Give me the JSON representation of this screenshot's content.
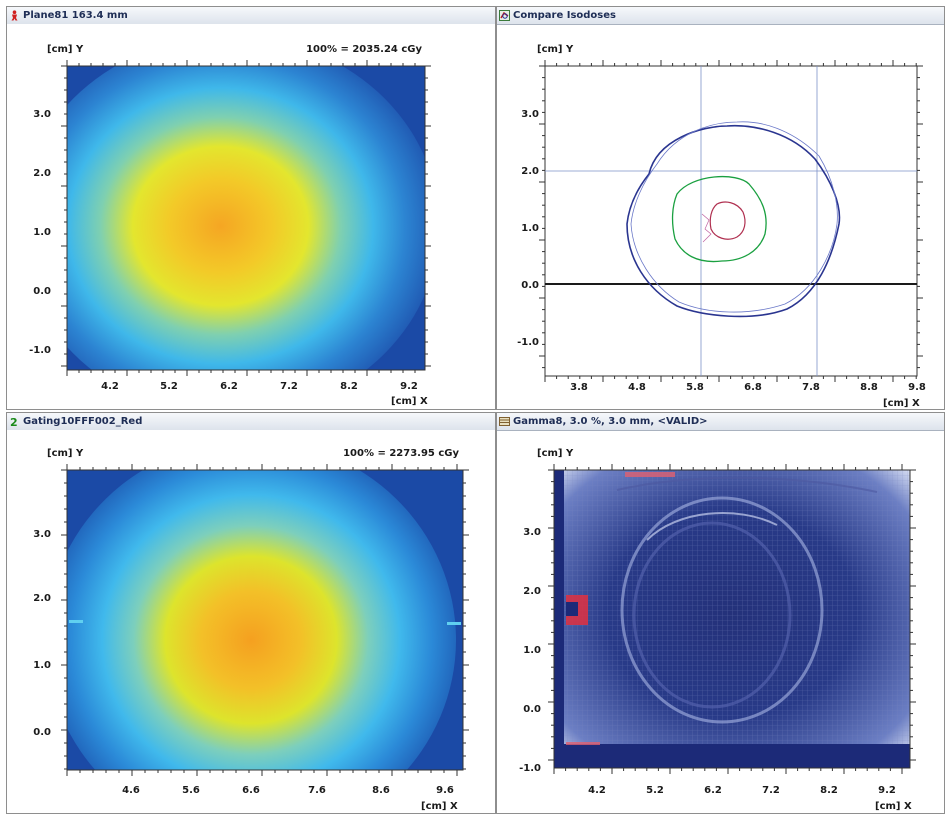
{
  "panels": [
    {
      "title": "Plane81 163.4 mm",
      "icon": "red-figure-icon",
      "ylabel": "[cm] Y",
      "xlabel": "[cm] X",
      "annotation": "100% = 2035.24 cGy",
      "xticks": [
        "4.2",
        "5.2",
        "6.2",
        "7.2",
        "8.2",
        "9.2"
      ],
      "yticks": [
        "3.0",
        "2.0",
        "1.0",
        "0.0",
        "-1.0"
      ]
    },
    {
      "title": "Compare Isodoses",
      "icon": "compare-isodoses-icon",
      "ylabel": "[cm] Y",
      "xlabel": "[cm] X",
      "xticks": [
        "3.8",
        "4.8",
        "5.8",
        "6.8",
        "7.8",
        "8.8",
        "9.8"
      ],
      "yticks": [
        "3.0",
        "2.0",
        "1.0",
        "0.0",
        "-1.0"
      ]
    },
    {
      "title": "Gating10FFF002_Red",
      "icon": "green-number-2-icon",
      "ylabel": "[cm] Y",
      "xlabel": "[cm] X",
      "annotation": "100% = 2273.95 cGy",
      "xticks": [
        "4.6",
        "5.6",
        "6.6",
        "7.6",
        "8.6",
        "9.6"
      ],
      "yticks": [
        "3.0",
        "2.0",
        "1.0",
        "0.0"
      ]
    },
    {
      "title": "Gamma8,  3.0 %,  3.0 mm, <VALID>",
      "icon": "gamma-grid-icon",
      "ylabel": "[cm] Y",
      "xlabel": "[cm] X",
      "xticks": [
        "4.2",
        "5.2",
        "6.2",
        "7.2",
        "8.2",
        "9.2"
      ],
      "yticks": [
        "3.0",
        "2.0",
        "1.0",
        "0.0",
        "-1.0"
      ]
    }
  ],
  "colors": {
    "dose_background": "#1a4ca8",
    "dose_outer": "#40b8e8",
    "dose_mid": "#e8e030",
    "dose_core": "#f2a020",
    "isodose_outer": "#2a3590",
    "isodose_mid": "#1aa040",
    "isodose_inner": "#b03050",
    "gamma_fail": "#e03040",
    "gamma_pass_dark": "#1c2a78",
    "gamma_pass_light": "#e8ecf8"
  }
}
